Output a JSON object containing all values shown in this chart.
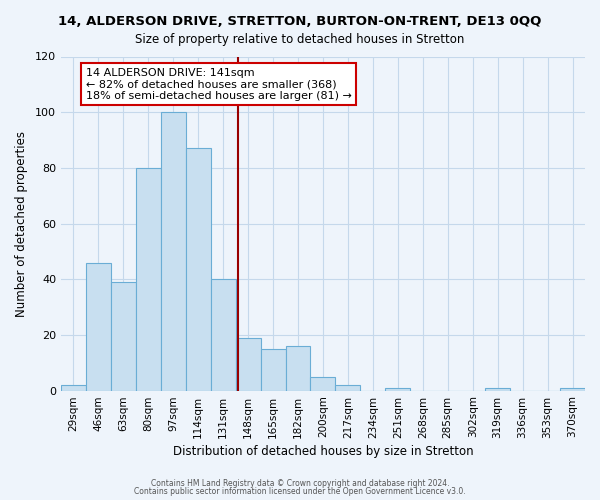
{
  "title": "14, ALDERSON DRIVE, STRETTON, BURTON-ON-TRENT, DE13 0QQ",
  "subtitle": "Size of property relative to detached houses in Stretton",
  "xlabel": "Distribution of detached houses by size in Stretton",
  "ylabel": "Number of detached properties",
  "bar_color": "#c8dff0",
  "bar_edge_color": "#6aadd5",
  "categories": [
    "29sqm",
    "46sqm",
    "63sqm",
    "80sqm",
    "97sqm",
    "114sqm",
    "131sqm",
    "148sqm",
    "165sqm",
    "182sqm",
    "200sqm",
    "217sqm",
    "234sqm",
    "251sqm",
    "268sqm",
    "285sqm",
    "302sqm",
    "319sqm",
    "336sqm",
    "353sqm",
    "370sqm"
  ],
  "values": [
    2,
    46,
    39,
    80,
    100,
    87,
    40,
    19,
    15,
    16,
    5,
    2,
    0,
    1,
    0,
    0,
    0,
    1,
    0,
    0,
    1
  ],
  "ylim": [
    0,
    120
  ],
  "yticks": [
    0,
    20,
    40,
    60,
    80,
    100,
    120
  ],
  "annotation_title": "14 ALDERSON DRIVE: 141sqm",
  "annotation_line1": "← 82% of detached houses are smaller (368)",
  "annotation_line2": "18% of semi-detached houses are larger (81) →",
  "annotation_box_color": "#ffffff",
  "annotation_box_edge": "#cc0000",
  "vline_color": "#990000",
  "footer1": "Contains HM Land Registry data © Crown copyright and database right 2024.",
  "footer2": "Contains public sector information licensed under the Open Government Licence v3.0.",
  "background_color": "#eef4fb",
  "grid_color": "#c5d8eb"
}
